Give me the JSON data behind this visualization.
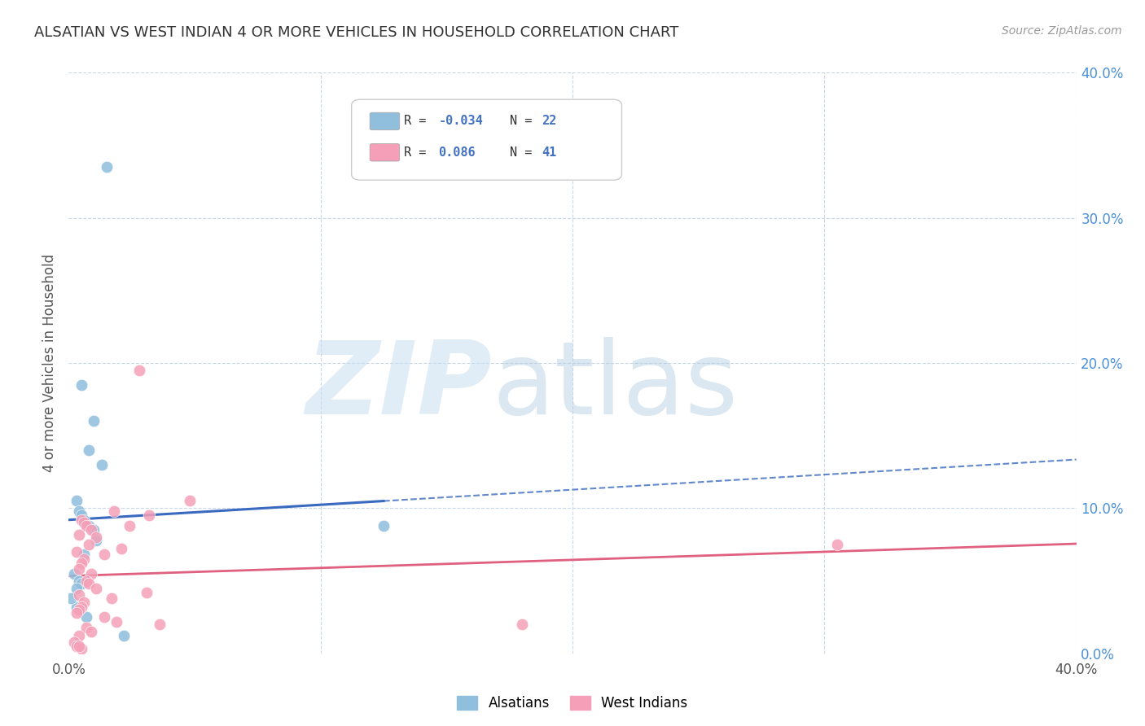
{
  "title": "ALSATIAN VS WEST INDIAN 4 OR MORE VEHICLES IN HOUSEHOLD CORRELATION CHART",
  "source": "Source: ZipAtlas.com",
  "ylabel": "4 or more Vehicles in Household",
  "xlim": [
    0.0,
    40.0
  ],
  "ylim": [
    0.0,
    40.0
  ],
  "yticks": [
    0.0,
    10.0,
    20.0,
    30.0,
    40.0
  ],
  "xticks": [
    0.0,
    40.0
  ],
  "grid_yticks": [
    10.0,
    20.0,
    30.0,
    40.0
  ],
  "grid_xticks": [
    10.0,
    20.0,
    30.0,
    40.0
  ],
  "watermark_zip": "ZIP",
  "watermark_atlas": "atlas",
  "legend_R1": "-0.034",
  "legend_N1": "22",
  "legend_R2": "0.086",
  "legend_N2": "41",
  "alsatian_x": [
    1.5,
    0.5,
    1.0,
    0.8,
    0.3,
    0.4,
    0.5,
    0.6,
    0.8,
    1.0,
    1.1,
    1.3,
    0.2,
    0.4,
    0.5,
    0.3,
    0.3,
    12.5,
    0.6,
    0.7,
    2.2,
    0.1
  ],
  "alsatian_y": [
    33.5,
    18.5,
    16.0,
    14.0,
    10.5,
    9.8,
    9.5,
    9.2,
    8.8,
    8.5,
    7.8,
    13.0,
    5.5,
    5.0,
    4.8,
    4.5,
    3.2,
    8.8,
    6.8,
    2.5,
    1.2,
    3.8
  ],
  "westindian_x": [
    2.8,
    1.8,
    3.2,
    0.5,
    0.6,
    0.7,
    0.9,
    0.4,
    1.1,
    0.8,
    2.1,
    4.8,
    0.3,
    1.4,
    0.6,
    0.5,
    0.4,
    0.9,
    0.7,
    0.8,
    2.4,
    1.1,
    3.1,
    0.4,
    1.7,
    0.6,
    0.5,
    0.4,
    0.3,
    1.4,
    1.9,
    3.6,
    0.7,
    0.9,
    0.4,
    30.5,
    0.2,
    0.3,
    0.5,
    0.4,
    18.0
  ],
  "westindian_y": [
    19.5,
    9.8,
    9.5,
    9.2,
    9.0,
    8.8,
    8.5,
    8.2,
    8.0,
    7.5,
    7.2,
    10.5,
    7.0,
    6.8,
    6.5,
    6.2,
    5.8,
    5.5,
    5.0,
    4.8,
    8.8,
    4.5,
    4.2,
    4.0,
    3.8,
    3.5,
    3.2,
    3.0,
    2.8,
    2.5,
    2.2,
    2.0,
    1.8,
    1.5,
    1.2,
    7.5,
    0.8,
    0.5,
    0.3,
    0.5,
    2.0
  ],
  "alsatian_color": "#90bedd",
  "westindian_color": "#f5a0b8",
  "alsatian_line_color": "#3a6abf",
  "westindian_line_color": "#e06080",
  "alsatian_solid_end": 12.5,
  "background_color": "#ffffff",
  "grid_color": "#c8d8e8"
}
